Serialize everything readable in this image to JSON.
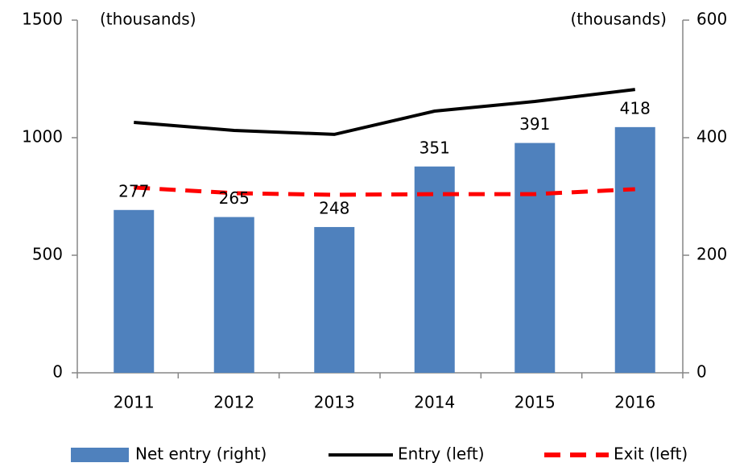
{
  "chart_data": {
    "type": "combo",
    "y_label": "(thousands)",
    "y2_label": "(thousands)",
    "categories": [
      "2011",
      "2012",
      "2013",
      "2014",
      "2015",
      "2016"
    ],
    "series": [
      {
        "name": "Net entry (right)",
        "type": "bar",
        "axis": "y2",
        "color": "#4f81bd",
        "values": [
          277,
          265,
          248,
          351,
          391,
          418
        ],
        "data_labels": true
      },
      {
        "name": "Entry (left)",
        "type": "line",
        "axis": "y",
        "color": "#000000",
        "dashed": false,
        "values": [
          1065,
          1031,
          1014,
          1113,
          1154,
          1205
        ]
      },
      {
        "name": "Exit (left)",
        "type": "line",
        "axis": "y",
        "color": "#ff0000",
        "dashed": true,
        "values": [
          788,
          764,
          757,
          760,
          760,
          781
        ]
      }
    ],
    "ylim": [
      0,
      1500
    ],
    "yticks": [
      0,
      500,
      1000,
      1500
    ],
    "y2lim": [
      0,
      600
    ],
    "y2ticks": [
      0,
      200,
      400,
      600
    ],
    "grid": false,
    "legend": "bottom"
  }
}
